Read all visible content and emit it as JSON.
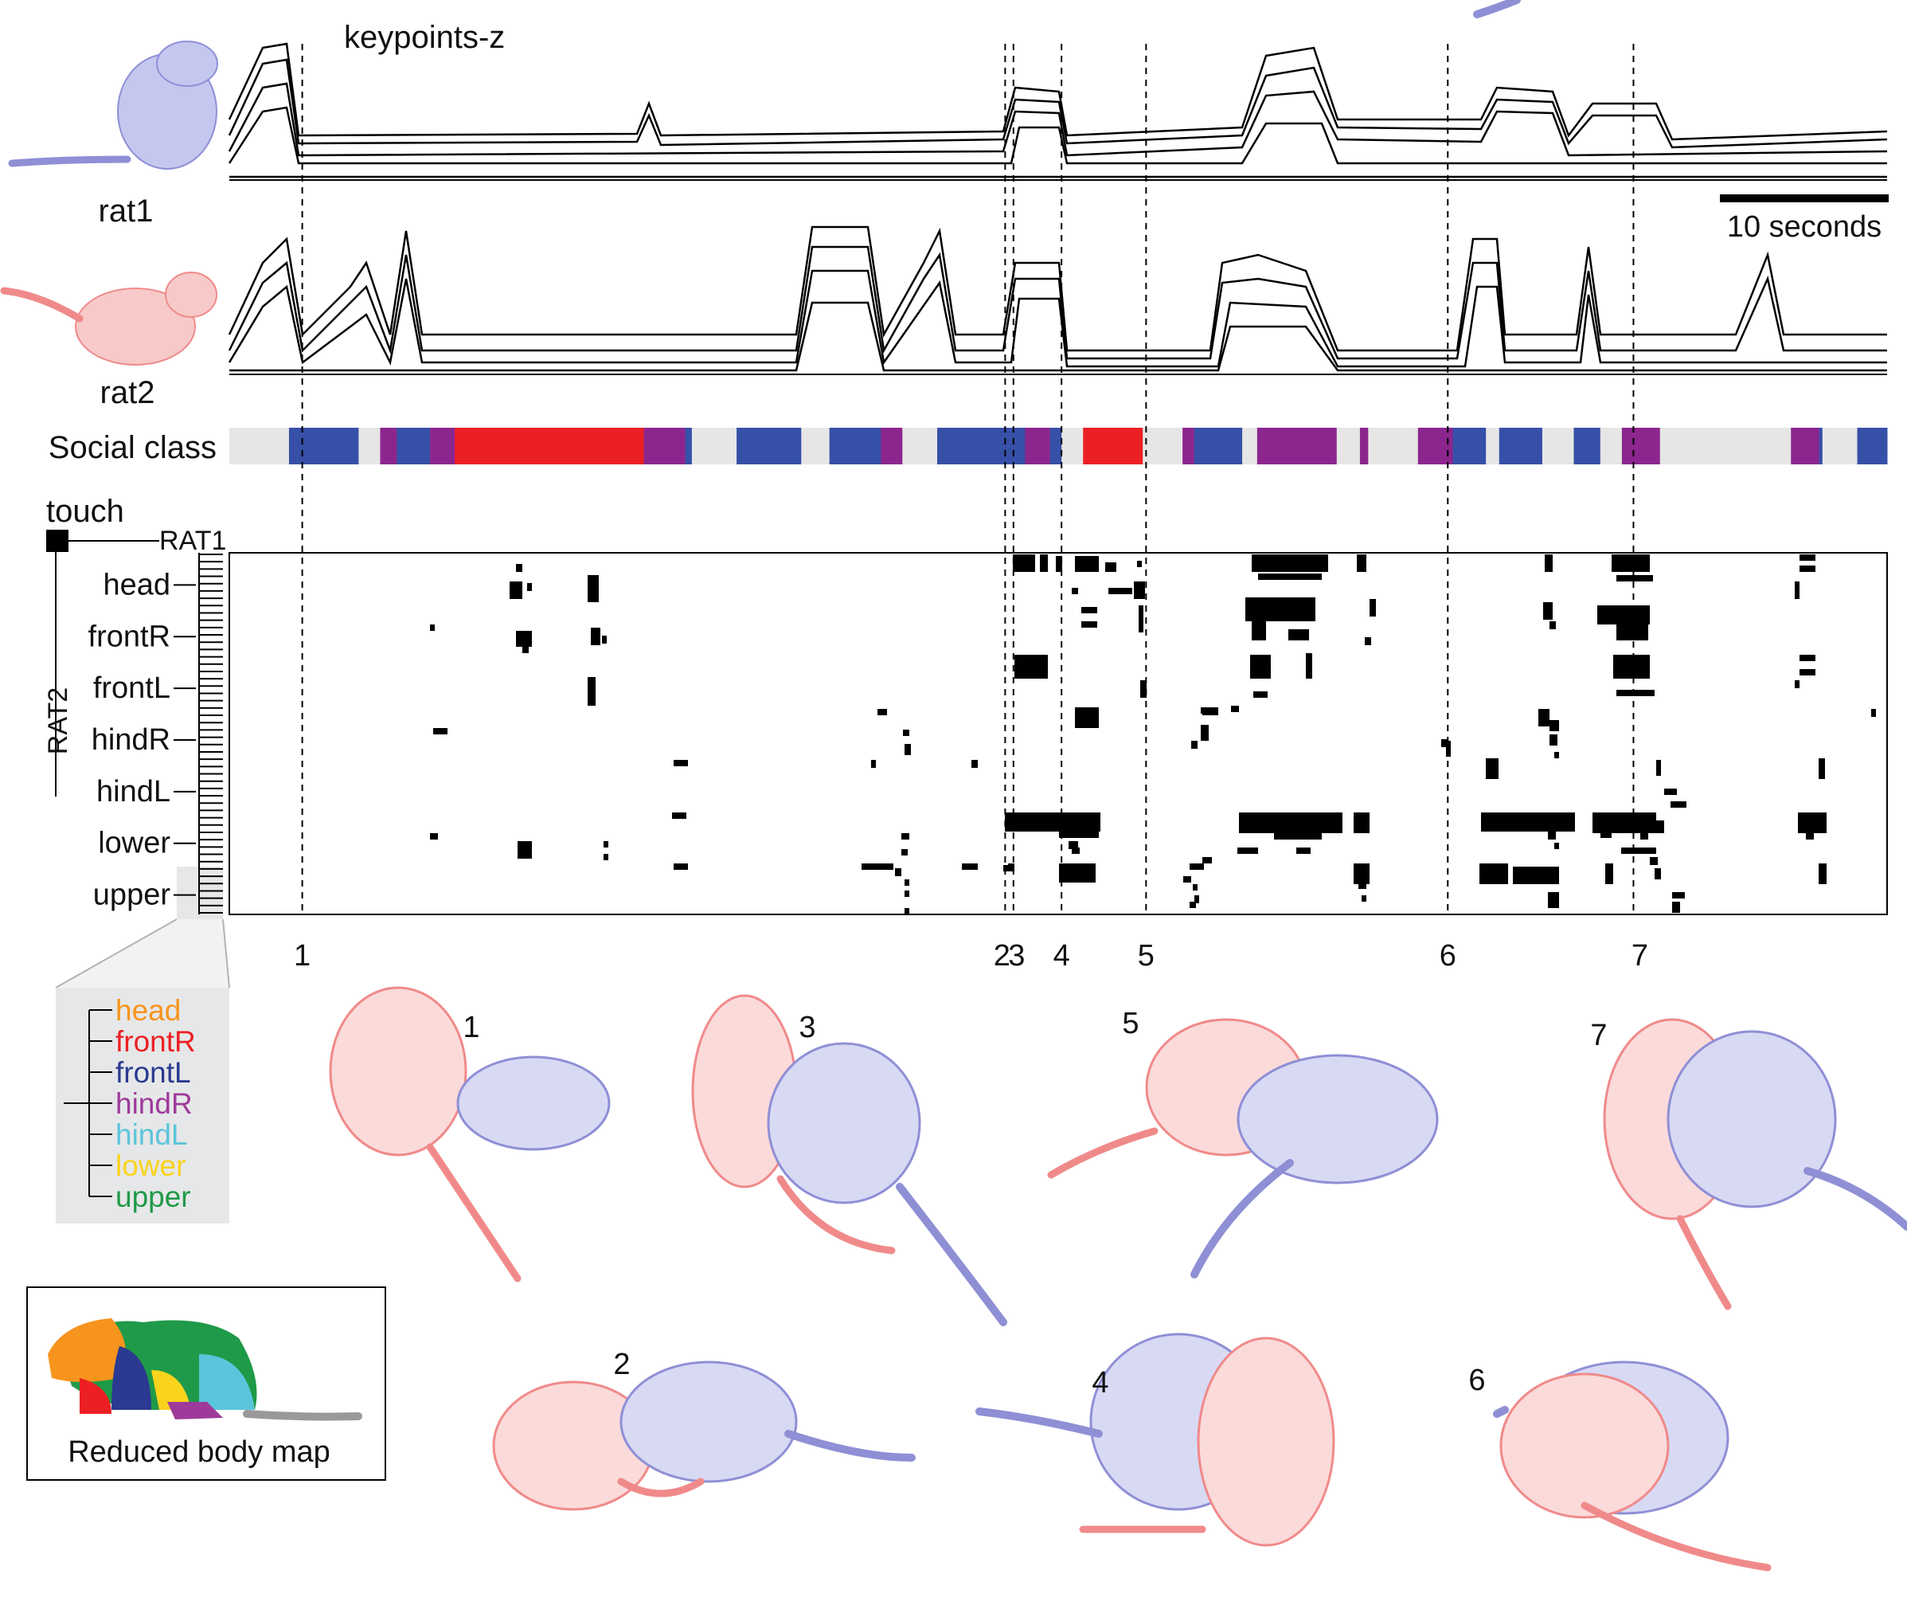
{
  "title": "keypoints-z",
  "rat_labels": [
    "rat1",
    "rat2"
  ],
  "scale_bar": "10 seconds",
  "social_class": {
    "label": "Social class",
    "colors": {
      "none": "#e6e6e6",
      "blue": "#3650a8",
      "purple": "#8c268e",
      "red": "#ec2024"
    },
    "segments": [
      {
        "start": 0.0,
        "end": 0.036,
        "cls": "none"
      },
      {
        "start": 0.036,
        "end": 0.078,
        "cls": "blue"
      },
      {
        "start": 0.078,
        "end": 0.091,
        "cls": "none"
      },
      {
        "start": 0.091,
        "end": 0.101,
        "cls": "purple"
      },
      {
        "start": 0.101,
        "end": 0.121,
        "cls": "blue"
      },
      {
        "start": 0.121,
        "end": 0.136,
        "cls": "purple"
      },
      {
        "start": 0.136,
        "end": 0.25,
        "cls": "red"
      },
      {
        "start": 0.25,
        "end": 0.275,
        "cls": "purple"
      },
      {
        "start": 0.275,
        "end": 0.279,
        "cls": "blue"
      },
      {
        "start": 0.279,
        "end": 0.306,
        "cls": "none"
      },
      {
        "start": 0.306,
        "end": 0.345,
        "cls": "blue"
      },
      {
        "start": 0.345,
        "end": 0.362,
        "cls": "none"
      },
      {
        "start": 0.362,
        "end": 0.393,
        "cls": "blue"
      },
      {
        "start": 0.393,
        "end": 0.406,
        "cls": "purple"
      },
      {
        "start": 0.406,
        "end": 0.427,
        "cls": "none"
      },
      {
        "start": 0.427,
        "end": 0.48,
        "cls": "blue"
      },
      {
        "start": 0.48,
        "end": 0.495,
        "cls": "purple"
      },
      {
        "start": 0.495,
        "end": 0.502,
        "cls": "blue"
      },
      {
        "start": 0.502,
        "end": 0.515,
        "cls": "none"
      },
      {
        "start": 0.515,
        "end": 0.551,
        "cls": "red"
      },
      {
        "start": 0.551,
        "end": 0.575,
        "cls": "none"
      },
      {
        "start": 0.575,
        "end": 0.582,
        "cls": "purple"
      },
      {
        "start": 0.582,
        "end": 0.611,
        "cls": "blue"
      },
      {
        "start": 0.611,
        "end": 0.62,
        "cls": "none"
      },
      {
        "start": 0.62,
        "end": 0.668,
        "cls": "purple"
      },
      {
        "start": 0.668,
        "end": 0.682,
        "cls": "none"
      },
      {
        "start": 0.682,
        "end": 0.687,
        "cls": "purple"
      },
      {
        "start": 0.687,
        "end": 0.717,
        "cls": "none"
      },
      {
        "start": 0.717,
        "end": 0.738,
        "cls": "purple"
      },
      {
        "start": 0.738,
        "end": 0.758,
        "cls": "blue"
      },
      {
        "start": 0.758,
        "end": 0.766,
        "cls": "none"
      },
      {
        "start": 0.766,
        "end": 0.792,
        "cls": "blue"
      },
      {
        "start": 0.792,
        "end": 0.811,
        "cls": "none"
      },
      {
        "start": 0.811,
        "end": 0.827,
        "cls": "blue"
      },
      {
        "start": 0.827,
        "end": 0.84,
        "cls": "none"
      },
      {
        "start": 0.84,
        "end": 0.863,
        "cls": "purple"
      },
      {
        "start": 0.863,
        "end": 0.942,
        "cls": "none"
      },
      {
        "start": 0.942,
        "end": 0.959,
        "cls": "purple"
      },
      {
        "start": 0.959,
        "end": 0.961,
        "cls": "blue"
      },
      {
        "start": 0.961,
        "end": 0.982,
        "cls": "none"
      },
      {
        "start": 0.982,
        "end": 1.0,
        "cls": "blue"
      }
    ]
  },
  "touch": {
    "label": "touch",
    "rat1_label": "RAT1",
    "rat2_label": "RAT2",
    "rows": [
      "head",
      "frontR",
      "frontL",
      "hindR",
      "hindL",
      "lower",
      "upper"
    ]
  },
  "events": {
    "labels": [
      "1",
      "2",
      "3",
      "4",
      "5",
      "6",
      "7"
    ],
    "positions": [
      0.044,
      0.468,
      0.473,
      0.502,
      0.553,
      0.735,
      0.847
    ]
  },
  "legend": {
    "items": [
      {
        "label": "head",
        "color": "#f7941d"
      },
      {
        "label": "frontR",
        "color": "#ec2024"
      },
      {
        "label": "frontL",
        "color": "#2b3990"
      },
      {
        "label": "hindR",
        "color": "#9e3a9a"
      },
      {
        "label": "hindL",
        "color": "#5bc5db"
      },
      {
        "label": "lower",
        "color": "#f9d31c"
      },
      {
        "label": "upper",
        "color": "#1f9a48"
      }
    ]
  },
  "body_map": {
    "label": "Reduced body map"
  },
  "snapshots": [
    "1",
    "3",
    "5",
    "7",
    "2",
    "4",
    "6"
  ],
  "colors": {
    "rat1": "#8f8fd6",
    "rat2": "#f08a8a"
  }
}
